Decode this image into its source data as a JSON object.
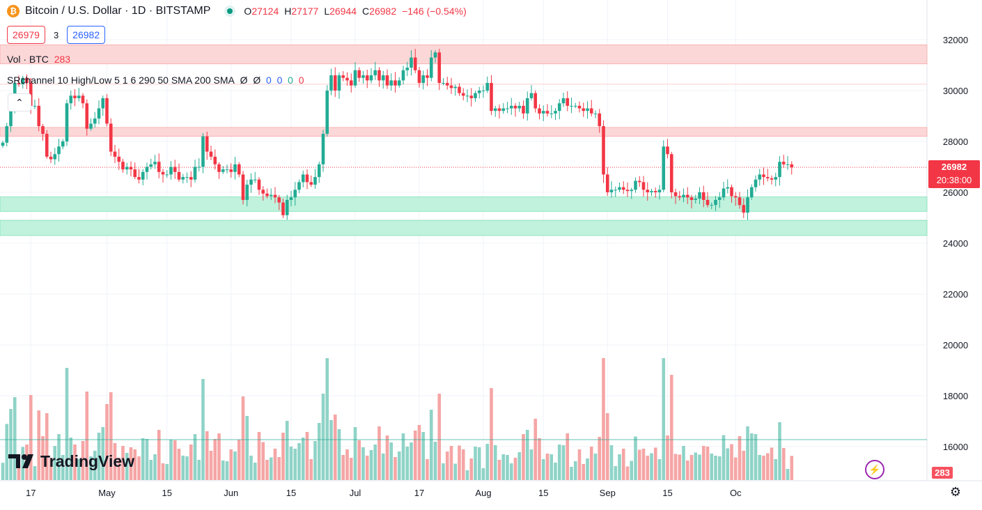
{
  "header": {
    "coin_icon": "bitcoin-icon",
    "symbol_title": "Bitcoin / U.S. Dollar · 1D · BITSTAMP",
    "status_icon": "market-status-icon",
    "ohlc": {
      "o_label": "O",
      "o": "27124",
      "h_label": "H",
      "h": "27177",
      "l_label": "L",
      "l": "26944",
      "c_label": "C",
      "c": "26982",
      "change": "−146 (−0.54%)"
    }
  },
  "bid_ask": {
    "sell": "26979",
    "spread": "3",
    "buy": "26982"
  },
  "indicators": [
    {
      "label": "Vol · BTC",
      "value": "283"
    },
    {
      "label": "SRchannel 10 High/Low 5 1 6 290 50 SMA 200 SMA",
      "values": [
        "Ø",
        "Ø",
        "0",
        "0",
        "0",
        "0"
      ]
    }
  ],
  "collapse_icon": "chevron-up-icon",
  "logo": {
    "text": "TradingView",
    "icon": "tradingview-logo-icon"
  },
  "price_tag": {
    "price": "26982",
    "countdown": "20:38:00"
  },
  "volume_tag": "283",
  "bolt_icon": "lightning-icon",
  "settings_icon": "gear-icon",
  "colors": {
    "up": "#22ab94",
    "down": "#f23645",
    "resistance": "#fcd7d7",
    "support": "#c0f2dd"
  },
  "chart_data": {
    "type": "candlestick",
    "title": "Bitcoin / U.S. Dollar · 1D · BITSTAMP",
    "y_ticks": [
      32000,
      30000,
      28000,
      26000,
      24000,
      22000,
      20000,
      18000,
      16000
    ],
    "y_range": [
      15200,
      33000
    ],
    "x_ticks": [
      "17",
      "May",
      "15",
      "Jun",
      "15",
      "Jul",
      "17",
      "Aug",
      "15",
      "Sep",
      "15",
      "Oc"
    ],
    "x_tick_bar_index": [
      7,
      26,
      41,
      57,
      72,
      88,
      104,
      120,
      135,
      151,
      166,
      183
    ],
    "current_price": 26982,
    "zones": [
      {
        "kind": "resistance",
        "low": 31050,
        "high": 31800
      },
      {
        "kind": "resistance",
        "low": 28200,
        "high": 28550
      },
      {
        "kind": "support",
        "low": 25250,
        "high": 25820
      },
      {
        "kind": "support",
        "low": 24300,
        "high": 24900
      }
    ],
    "levels": [
      30250
    ],
    "volume_ma": 16350,
    "candle_close": [
      27950,
      28600,
      29400,
      30300,
      30250,
      30500,
      30300,
      29400,
      29400,
      28600,
      28300,
      27400,
      27300,
      27500,
      27800,
      28000,
      29500,
      29800,
      29700,
      29800,
      29500,
      28500,
      28700,
      28900,
      29300,
      29700,
      28700,
      27600,
      27400,
      27200,
      26900,
      27000,
      26900,
      26600,
      26500,
      26800,
      27000,
      27100,
      27200,
      26800,
      26700,
      26700,
      27000,
      26800,
      26500,
      26600,
      26600,
      26500,
      27000,
      27000,
      28200,
      27600,
      27400,
      27100,
      26800,
      26900,
      26900,
      26800,
      27100,
      26700,
      25700,
      26300,
      26500,
      26500,
      26100,
      25950,
      25850,
      25900,
      25800,
      25600,
      25100,
      25700,
      25800,
      26100,
      26400,
      26700,
      26400,
      26300,
      26600,
      27100,
      28300,
      30000,
      30600,
      30000,
      30600,
      30500,
      30400,
      30200,
      30800,
      30500,
      30600,
      30400,
      30600,
      30800,
      30400,
      30600,
      30200,
      30400,
      30200,
      30400,
      30800,
      30900,
      31300,
      30800,
      30300,
      30600,
      30500,
      31300,
      31500,
      30300,
      30300,
      30200,
      30100,
      30150,
      29900,
      29800,
      29800,
      29700,
      29900,
      30000,
      30000,
      30300,
      29200,
      29300,
      29200,
      29300,
      29300,
      29400,
      29300,
      29400,
      29100,
      29700,
      29900,
      29300,
      29100,
      29200,
      29100,
      29100,
      29200,
      29500,
      29700,
      29400,
      29400,
      29400,
      29300,
      29200,
      29300,
      29100,
      29100,
      28600,
      26700,
      26000,
      26100,
      26100,
      26200,
      26100,
      26050,
      26100,
      26450,
      26400,
      26100,
      26000,
      26050,
      26000,
      26100,
      27800,
      27500,
      26000,
      25850,
      25800,
      25900,
      25800,
      25700,
      25750,
      26000,
      25700,
      25500,
      25500,
      25700,
      25800,
      26150,
      26200,
      25850,
      25800,
      25500,
      25200,
      25800,
      26200,
      26500,
      26700,
      26600,
      26550,
      26500,
      26600,
      27200,
      27100,
      27100,
      26982
    ]
  }
}
